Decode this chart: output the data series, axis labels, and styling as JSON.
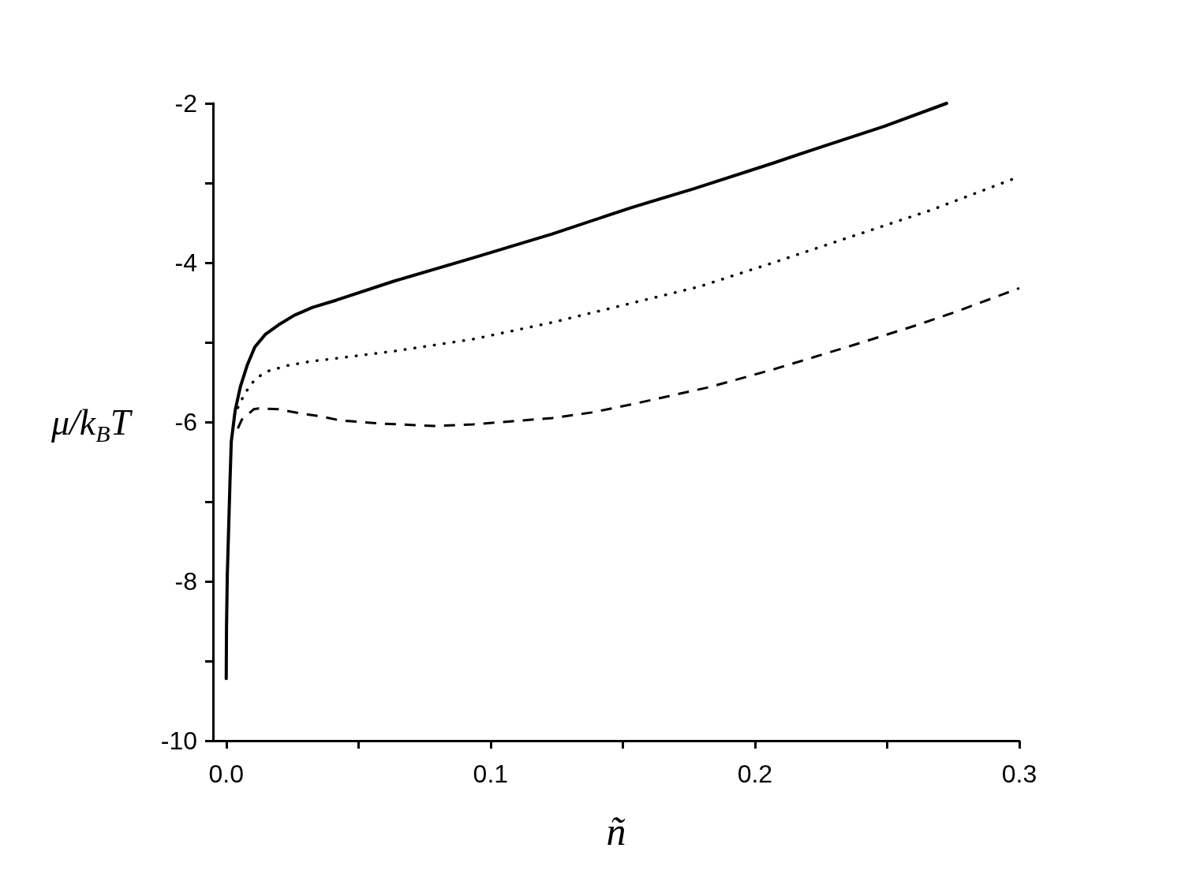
{
  "chart_data": {
    "type": "line",
    "xlabel": "ñ",
    "ylabel": "μ/k$_{B}$T",
    "xlim": [
      -0.005,
      0.3
    ],
    "ylim": [
      -10,
      -2
    ],
    "xticks": [
      {
        "value": 0,
        "label": "0.0"
      },
      {
        "value": 0.05,
        "label": null
      },
      0.1,
      {
        "value": 0.15,
        "label": null
      },
      0.2,
      {
        "value": 0.25,
        "label": null
      },
      0.3
    ],
    "yticks": [
      -10,
      {
        "value": -9,
        "label": null
      },
      -8,
      {
        "value": -7,
        "label": null
      },
      -6,
      {
        "value": -5,
        "label": null
      },
      -4,
      {
        "value": -3,
        "label": null
      },
      -2
    ],
    "grid": false,
    "marker": "none",
    "series": [
      {
        "color": "#000000",
        "line_style": "solid",
        "x": [
          0,
          0.0001,
          0.0004,
          0.0014,
          0.0019,
          0.0034,
          0.0054,
          0.0079,
          0.0108,
          0.0148,
          0.0198,
          0.0258,
          0.0327,
          0.0417,
          0.0636,
          0.0934,
          0.1233,
          0.1531,
          0.177,
          0.2069,
          0.2248,
          0.2487,
          0.2725
        ],
        "values": [
          -9.22,
          -8.59,
          -7.93,
          -6.77,
          -6.25,
          -5.85,
          -5.55,
          -5.29,
          -5.06,
          -4.9,
          -4.78,
          -4.66,
          -4.56,
          -4.47,
          -4.23,
          -3.94,
          -3.64,
          -3.31,
          -3.07,
          -2.75,
          -2.55,
          -2.29,
          -2.0
        ]
      },
      {
        "color": "#000000",
        "line_style": "dotted",
        "x": [
          0.0044,
          0.0069,
          0.0097,
          0.0128,
          0.016,
          0.0233,
          0.0317,
          0.0417,
          0.0636,
          0.0934,
          0.1233,
          0.1531,
          0.179,
          0.2069,
          0.2367,
          0.2666,
          0.3
        ],
        "values": [
          -5.82,
          -5.65,
          -5.51,
          -5.42,
          -5.36,
          -5.29,
          -5.24,
          -5.2,
          -5.11,
          -4.96,
          -4.75,
          -4.51,
          -4.3,
          -4.0,
          -3.67,
          -3.34,
          -2.92
        ]
      },
      {
        "color": "#000000",
        "line_style": "dashed",
        "x": [
          0.0044,
          0.0059,
          0.0104,
          0.0124,
          0.0198,
          0.0278,
          0.0357,
          0.0432,
          0.0586,
          0.0785,
          0.0934,
          0.1084,
          0.1233,
          0.1382,
          0.1531,
          0.1681,
          0.183,
          0.2069,
          0.2367,
          0.2616,
          0.2765,
          0.3
        ],
        "values": [
          -6.08,
          -5.97,
          -5.84,
          -5.83,
          -5.84,
          -5.89,
          -5.93,
          -5.98,
          -6.02,
          -6.05,
          -6.03,
          -5.99,
          -5.95,
          -5.88,
          -5.78,
          -5.67,
          -5.56,
          -5.34,
          -5.04,
          -4.78,
          -4.61,
          -4.32
        ]
      }
    ]
  }
}
